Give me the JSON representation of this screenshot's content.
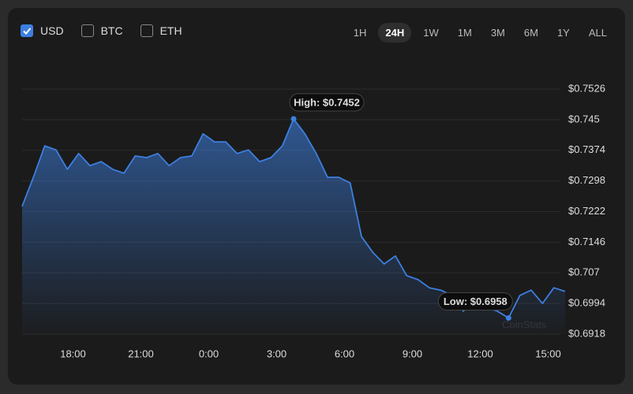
{
  "controls": {
    "currencies": [
      {
        "label": "USD",
        "checked": true
      },
      {
        "label": "BTC",
        "checked": false
      },
      {
        "label": "ETH",
        "checked": false
      }
    ],
    "ranges": [
      {
        "label": "1H",
        "active": false
      },
      {
        "label": "24H",
        "active": true
      },
      {
        "label": "1W",
        "active": false
      },
      {
        "label": "1M",
        "active": false
      },
      {
        "label": "3M",
        "active": false
      },
      {
        "label": "6M",
        "active": false
      },
      {
        "label": "1Y",
        "active": false
      },
      {
        "label": "ALL",
        "active": false
      }
    ]
  },
  "chart_data": {
    "type": "area",
    "watermark": "CoinStats",
    "x": [
      15.75,
      16.25,
      16.75,
      17.25,
      17.75,
      18.25,
      18.75,
      19.25,
      19.75,
      20.25,
      20.75,
      21.25,
      21.75,
      22.25,
      22.75,
      23.25,
      23.75,
      24.25,
      24.75,
      25.25,
      25.75,
      26.25,
      26.75,
      27.25,
      27.75,
      28.25,
      28.75,
      29.25,
      29.75,
      30.25,
      30.75,
      31.25,
      31.75,
      32.25,
      32.75,
      33.25,
      33.75,
      34.25,
      34.75,
      35.25,
      35.75,
      36.25,
      36.75,
      37.25,
      37.75,
      38.25,
      38.75,
      39.25,
      39.75
    ],
    "series": [
      {
        "color": "#3d7fe0",
        "values": [
          0.7235,
          0.7307,
          0.7385,
          0.7375,
          0.7327,
          0.7366,
          0.7336,
          0.7346,
          0.7327,
          0.7317,
          0.736,
          0.7356,
          0.7366,
          0.7336,
          0.7356,
          0.736,
          0.7415,
          0.7395,
          0.7395,
          0.7366,
          0.7375,
          0.7346,
          0.7356,
          0.7385,
          0.7452,
          0.7415,
          0.7366,
          0.7307,
          0.7307,
          0.7293,
          0.716,
          0.7121,
          0.7092,
          0.7112,
          0.7063,
          0.7053,
          0.7033,
          0.7027,
          0.7014,
          0.6975,
          0.7004,
          0.6984,
          0.6975,
          0.6958,
          0.7014,
          0.7027,
          0.6994,
          0.7033,
          0.7024
        ]
      }
    ],
    "xlim": [
      15.75,
      39.75
    ],
    "xticks": [
      {
        "value": 18,
        "label": "18:00"
      },
      {
        "value": 21,
        "label": "21:00"
      },
      {
        "value": 24,
        "label": "0:00"
      },
      {
        "value": 27,
        "label": "3:00"
      },
      {
        "value": 30,
        "label": "6:00"
      },
      {
        "value": 33,
        "label": "9:00"
      },
      {
        "value": 36,
        "label": "12:00"
      },
      {
        "value": 39,
        "label": "15:00"
      }
    ],
    "ylim": [
      0.6918,
      0.7526
    ],
    "yticks": [
      {
        "value": 0.6918,
        "label": "$0.6918"
      },
      {
        "value": 0.6994,
        "label": "$0.6994"
      },
      {
        "value": 0.707,
        "label": "$0.707"
      },
      {
        "value": 0.7146,
        "label": "$0.7146"
      },
      {
        "value": 0.7222,
        "label": "$0.7222"
      },
      {
        "value": 0.7298,
        "label": "$0.7298"
      },
      {
        "value": 0.7374,
        "label": "$0.7374"
      },
      {
        "value": 0.745,
        "label": "$0.745"
      },
      {
        "value": 0.7526,
        "label": "$0.7526"
      }
    ],
    "grid": true,
    "annotations": [
      {
        "text": "High: $0.7452",
        "x": 27.75,
        "value": 0.7452,
        "side": "above"
      },
      {
        "text": "Low: $0.6958",
        "x": 37.25,
        "value": 0.6958,
        "side": "above-left"
      }
    ]
  }
}
